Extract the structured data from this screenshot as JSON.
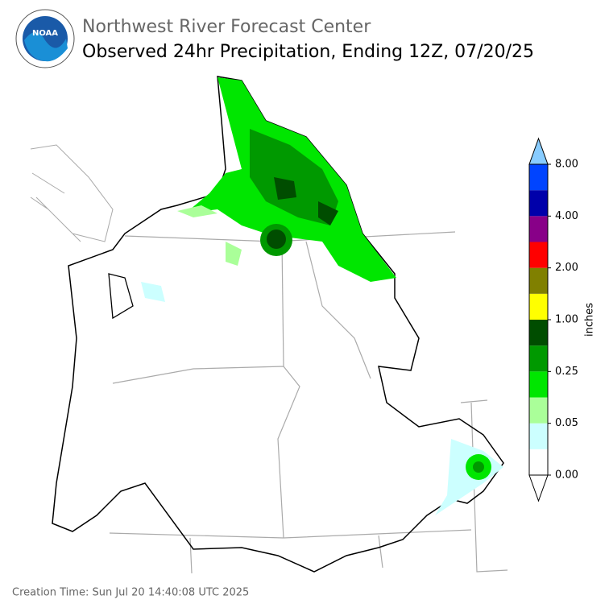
{
  "header": {
    "logo_text": "NOAA",
    "agency": "Northwest River Forecast Center",
    "title": "Observed 24hr Precipitation, Ending 12Z, 07/20/25"
  },
  "colorbar": {
    "label": "inches",
    "colors": [
      "#ffffff",
      "#ccffff",
      "#aaff99",
      "#00e600",
      "#009900",
      "#004d00",
      "#ffff00",
      "#808000",
      "#ff0000",
      "#880088",
      "#0000aa",
      "#0044ff"
    ],
    "over_color": "#88ccff",
    "under_color": "#ffffff",
    "ticks": [
      {
        "value": 0,
        "label": "0.00"
      },
      {
        "value": 0.05,
        "label": "0.05"
      },
      {
        "value": 0.25,
        "label": "0.25"
      },
      {
        "value": 1,
        "label": "1.00"
      },
      {
        "value": 2,
        "label": "2.00"
      },
      {
        "value": 4,
        "label": "4.00"
      },
      {
        "value": 8,
        "label": "8.00"
      }
    ]
  },
  "footer": {
    "creation_time": "Creation Time: Sun Jul 20 14:40:08 UTC 2025"
  }
}
